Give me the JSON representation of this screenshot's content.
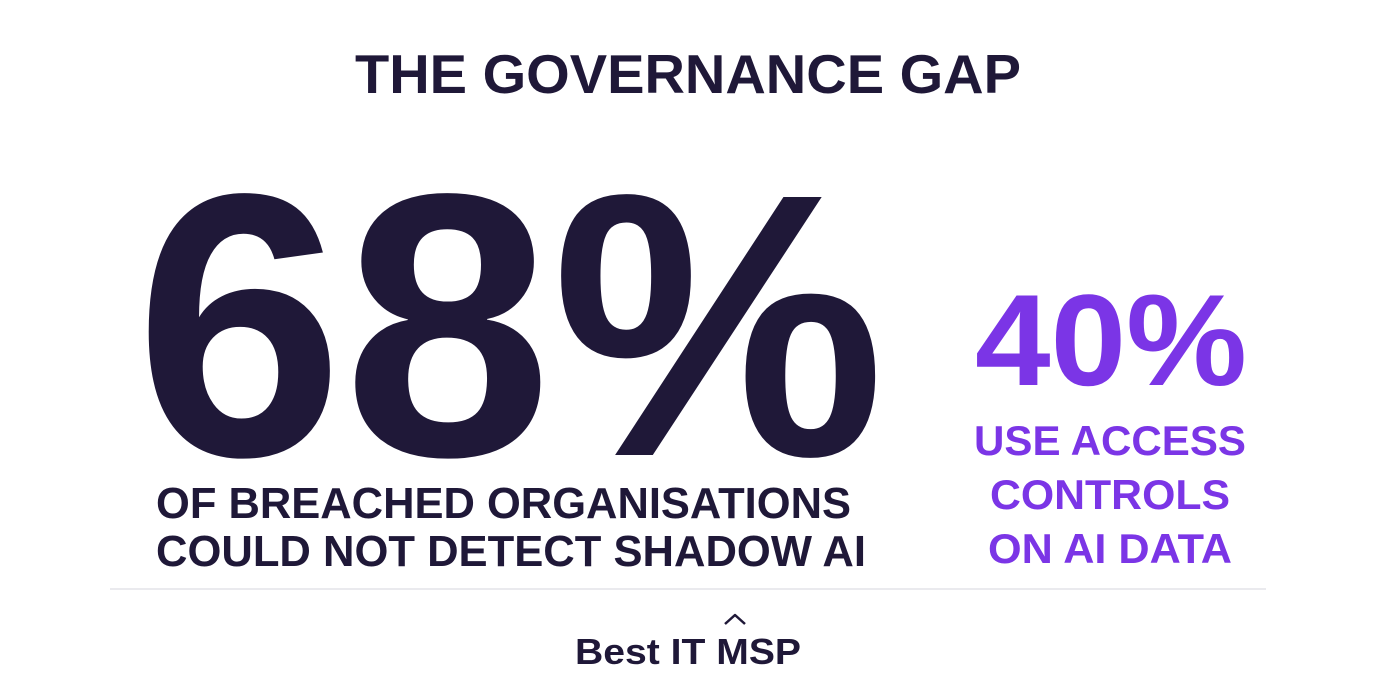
{
  "header": {
    "title": "THE GOVERNANCE GAP"
  },
  "main_stat": {
    "value": "68%",
    "caption": [
      "OF BREACHED ORGANISATIONS",
      "COULD NOT DETECT SHADOW AI"
    ]
  },
  "side_stat": {
    "value": "40%",
    "caption": [
      "USE ACCESS",
      "CONTROLS",
      "ON AI DATA"
    ]
  },
  "footer": {
    "brand": "Best IT MSP"
  }
}
